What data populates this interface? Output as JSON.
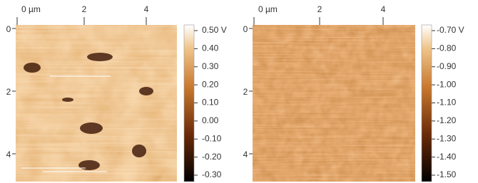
{
  "panels": [
    {
      "x_ticks": [
        "0 µm",
        "2",
        "4"
      ],
      "y_ticks": [
        "0",
        "2",
        "4"
      ],
      "colorbar_ticks": [
        "0.50 V",
        "0.40",
        "0.30",
        "0.20",
        "0.10",
        "0.00",
        "-0.10",
        "-0.20",
        "-0.30"
      ]
    },
    {
      "x_ticks": [
        "0 µm",
        "2",
        "4"
      ],
      "y_ticks": [
        "0",
        "2",
        "4"
      ],
      "colorbar_ticks": [
        "-0.70 V",
        "-0.80",
        "-0.90",
        "-1.00",
        "-1.10",
        "-1.20",
        "-1.30",
        "-1.40",
        "-1.50"
      ]
    }
  ]
}
